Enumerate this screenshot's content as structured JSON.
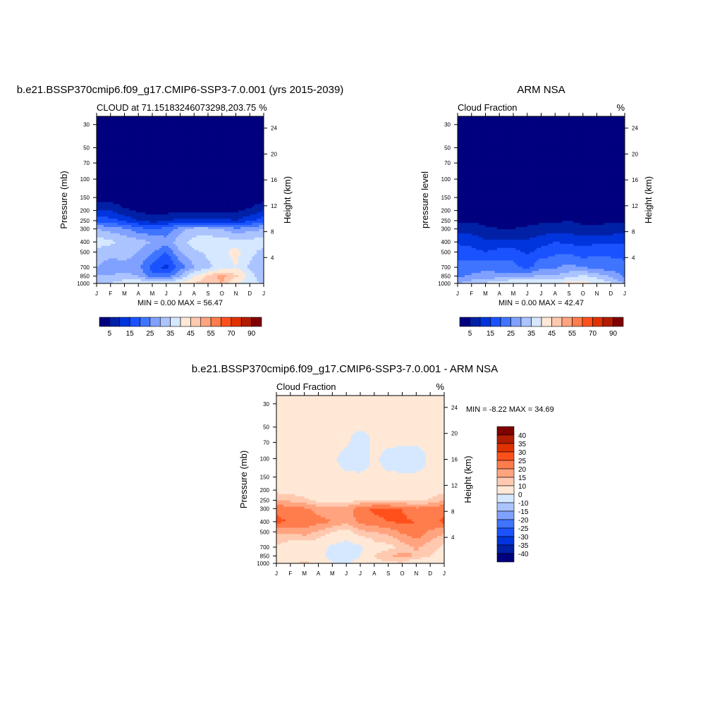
{
  "colors": {
    "scale": [
      "#01007e",
      "#0020a6",
      "#0034dc",
      "#1b52ff",
      "#3f74ff",
      "#80a1ff",
      "#abc4ff",
      "#d6e8ff",
      "#ffe8d6",
      "#ffc9b0",
      "#ffa47f",
      "#ff7c4c",
      "#ff501c",
      "#e03200",
      "#b21c00",
      "#7f0000"
    ]
  },
  "chart_data": [
    {
      "type": "heatmap",
      "title": "b.e21.BSSP370cmip6.f09_g17.CMIP6-SSP3-7.0.001 (yrs 2015-2039)",
      "left_subtitle": "CLOUD at 71.15183246073298,203.75",
      "right_subtitle": "%",
      "ylabel": "Pressure (mb)",
      "y2label": "Height (km)",
      "stats": "MIN =   0.00 MAX =  56.47",
      "x_ticks": [
        "J",
        "F",
        "M",
        "A",
        "M",
        "J",
        "J",
        "A",
        "S",
        "O",
        "N",
        "D",
        "J"
      ],
      "y_ticks": [
        30,
        50,
        70,
        100,
        150,
        200,
        250,
        300,
        400,
        500,
        700,
        850,
        1000
      ],
      "y2_ticks": [
        24,
        20,
        16,
        12,
        8,
        4
      ],
      "levels": [
        5,
        10,
        15,
        20,
        25,
        30,
        35,
        40,
        45,
        50,
        55,
        60,
        70,
        80,
        90
      ],
      "level_labels": [
        "5",
        "15",
        "25",
        "35",
        "45",
        "55",
        "70",
        "90"
      ],
      "pressure": [
        25,
        30,
        50,
        70,
        100,
        150,
        200,
        250,
        300,
        400,
        500,
        700,
        850,
        1000
      ],
      "values": [
        [
          0,
          0,
          0,
          0,
          0,
          0,
          0,
          0,
          0,
          0,
          0,
          0,
          0
        ],
        [
          0,
          0,
          0,
          0,
          0,
          0,
          0,
          0,
          0,
          0,
          0,
          0,
          0
        ],
        [
          0,
          0,
          0,
          0,
          0,
          0,
          0,
          0,
          0,
          0,
          0,
          0,
          0
        ],
        [
          0,
          0,
          0,
          0,
          0,
          0,
          0,
          0,
          0,
          0,
          0,
          0,
          0
        ],
        [
          0,
          0,
          0,
          0,
          0,
          0,
          0,
          0,
          0,
          0,
          0,
          0,
          0
        ],
        [
          2,
          2,
          1,
          1,
          0,
          0,
          0,
          0,
          0,
          0,
          0,
          1,
          2
        ],
        [
          10,
          10,
          6,
          4,
          3,
          3,
          4,
          4,
          4,
          4,
          4,
          6,
          10
        ],
        [
          18,
          17,
          14,
          10,
          8,
          9,
          12,
          12,
          12,
          12,
          10,
          14,
          18
        ],
        [
          30,
          28,
          26,
          22,
          20,
          22,
          28,
          32,
          32,
          30,
          26,
          28,
          30
        ],
        [
          38,
          36,
          34,
          32,
          30,
          27,
          33,
          37,
          38,
          37,
          38,
          37,
          38
        ],
        [
          33,
          32,
          33,
          30,
          26,
          20,
          30,
          34,
          36,
          38,
          42,
          37,
          33
        ],
        [
          30,
          27,
          28,
          26,
          18,
          13,
          22,
          30,
          34,
          37,
          40,
          34,
          30
        ],
        [
          30,
          30,
          32,
          30,
          22,
          22,
          30,
          40,
          46,
          52,
          46,
          38,
          30
        ],
        [
          34,
          35,
          38,
          40,
          40,
          38,
          42,
          45,
          48,
          50,
          40,
          38,
          34
        ]
      ]
    },
    {
      "type": "heatmap",
      "title": "ARM NSA",
      "left_subtitle": "Cloud Fraction",
      "right_subtitle": "%",
      "ylabel": "pressure level",
      "y2label": "Height (km)",
      "stats": "MIN =   0.00 MAX =  42.47",
      "x_ticks": [
        "J",
        "F",
        "M",
        "A",
        "M",
        "J",
        "J",
        "A",
        "S",
        "O",
        "N",
        "D",
        "J"
      ],
      "y_ticks": [
        30,
        50,
        70,
        100,
        150,
        200,
        250,
        300,
        400,
        500,
        700,
        850,
        1000
      ],
      "y2_ticks": [
        24,
        20,
        16,
        12,
        8,
        4
      ],
      "levels": [
        5,
        10,
        15,
        20,
        25,
        30,
        35,
        40,
        45,
        50,
        55,
        60,
        70,
        80,
        90
      ],
      "level_labels": [
        "5",
        "15",
        "25",
        "35",
        "45",
        "55",
        "70",
        "90"
      ],
      "pressure": [
        25,
        30,
        50,
        70,
        100,
        150,
        200,
        250,
        300,
        400,
        500,
        700,
        850,
        1000
      ],
      "values": [
        [
          0,
          0,
          0,
          0,
          0,
          0,
          0,
          0,
          0,
          0,
          0,
          0,
          0
        ],
        [
          0,
          0,
          0,
          0,
          0,
          0,
          0,
          0,
          0,
          0,
          0,
          0,
          0
        ],
        [
          0,
          0,
          0,
          0,
          0,
          0,
          0,
          0,
          0,
          0,
          0,
          0,
          0
        ],
        [
          0,
          0,
          0,
          0,
          0,
          0,
          0,
          0,
          0,
          0,
          0,
          0,
          0
        ],
        [
          0,
          0,
          0,
          0,
          0,
          0,
          0,
          0,
          0,
          0,
          0,
          0,
          0
        ],
        [
          1,
          1,
          1,
          1,
          1,
          1,
          1,
          1,
          1,
          1,
          1,
          1,
          1
        ],
        [
          2,
          2,
          2,
          2,
          2,
          2,
          2,
          2,
          3,
          2,
          2,
          2,
          2
        ],
        [
          4,
          4,
          3,
          3,
          3,
          3,
          4,
          4,
          5,
          4,
          4,
          4,
          4
        ],
        [
          8,
          8,
          6,
          5,
          5,
          6,
          7,
          8,
          8,
          6,
          6,
          7,
          8
        ],
        [
          14,
          13,
          11,
          11,
          11,
          11,
          13,
          15,
          14,
          13,
          14,
          14,
          14
        ],
        [
          18,
          17,
          15,
          17,
          17,
          14,
          17,
          19,
          19,
          17,
          19,
          19,
          18
        ],
        [
          22,
          22,
          24,
          22,
          22,
          18,
          24,
          24,
          27,
          25,
          23,
          22,
          22
        ],
        [
          24,
          26,
          27,
          27,
          27,
          29,
          31,
          31,
          33,
          36,
          33,
          29,
          24
        ],
        [
          30,
          33,
          36,
          38,
          42,
          40,
          40,
          40,
          42,
          42,
          40,
          36,
          30
        ]
      ]
    },
    {
      "type": "heatmap",
      "title": "b.e21.BSSP370cmip6.f09_g17.CMIP6-SSP3-7.0.001 - ARM NSA",
      "left_subtitle": "Cloud Fraction",
      "right_subtitle": "%",
      "ylabel": "Pressure (mb)",
      "y2label": "Height (km)",
      "stats": "MIN = -8.22 MAX =  34.69",
      "x_ticks": [
        "J",
        "F",
        "M",
        "A",
        "M",
        "J",
        "J",
        "A",
        "S",
        "O",
        "N",
        "D",
        "J"
      ],
      "y_ticks": [
        30,
        50,
        70,
        100,
        150,
        200,
        250,
        300,
        400,
        500,
        700,
        850,
        1000
      ],
      "y2_ticks": [
        24,
        20,
        16,
        12,
        8,
        4
      ],
      "levels": [
        -40,
        -35,
        -30,
        -25,
        -20,
        -15,
        -10,
        0,
        10,
        15,
        20,
        25,
        30,
        35,
        40
      ],
      "level_labels": [
        "40",
        "35",
        "30",
        "25",
        "20",
        "15",
        "10",
        "0",
        "-10",
        "-15",
        "-20",
        "-25",
        "-30",
        "-35",
        "-40"
      ],
      "pressure": [
        25,
        30,
        50,
        70,
        100,
        150,
        200,
        250,
        300,
        400,
        500,
        700,
        850,
        1000
      ],
      "values": [
        [
          1,
          1,
          1,
          1,
          1,
          1,
          1,
          1,
          1,
          1,
          1,
          1,
          1
        ],
        [
          1,
          1,
          1,
          1,
          1,
          1,
          1,
          1,
          1,
          1,
          1,
          1,
          1
        ],
        [
          1,
          1,
          1,
          1,
          1,
          1,
          1,
          1,
          2,
          1,
          1,
          1,
          1
        ],
        [
          1,
          1,
          1,
          1,
          1,
          1,
          -3,
          1,
          1,
          1,
          1,
          1,
          1
        ],
        [
          1,
          1,
          1,
          1,
          1,
          -2,
          -3,
          1,
          -2,
          -3,
          -3,
          1,
          1
        ],
        [
          1,
          1,
          1,
          1,
          1,
          1,
          1,
          1,
          1,
          1,
          1,
          1,
          1
        ],
        [
          8,
          8,
          5,
          3,
          2,
          2,
          3,
          3,
          3,
          4,
          4,
          5,
          8
        ],
        [
          15,
          14,
          12,
          8,
          6,
          7,
          10,
          10,
          9,
          10,
          8,
          11,
          15
        ],
        [
          24,
          22,
          21,
          18,
          16,
          18,
          23,
          26,
          26,
          25,
          21,
          22,
          24
        ],
        [
          26,
          25,
          24,
          22,
          20,
          17,
          21,
          24,
          25,
          26,
          25,
          24,
          26
        ],
        [
          16,
          16,
          18,
          14,
          10,
          7,
          14,
          15,
          17,
          21,
          24,
          19,
          16
        ],
        [
          9,
          6,
          5,
          5,
          -2,
          -5,
          -2,
          7,
          8,
          12,
          16,
          12,
          9
        ],
        [
          7,
          5,
          6,
          4,
          -5,
          -7,
          0,
          10,
          14,
          17,
          14,
          10,
          7
        ],
        [
          8,
          8,
          12,
          8,
          1,
          -1,
          5,
          8,
          9,
          9,
          3,
          5,
          8
        ]
      ]
    }
  ]
}
